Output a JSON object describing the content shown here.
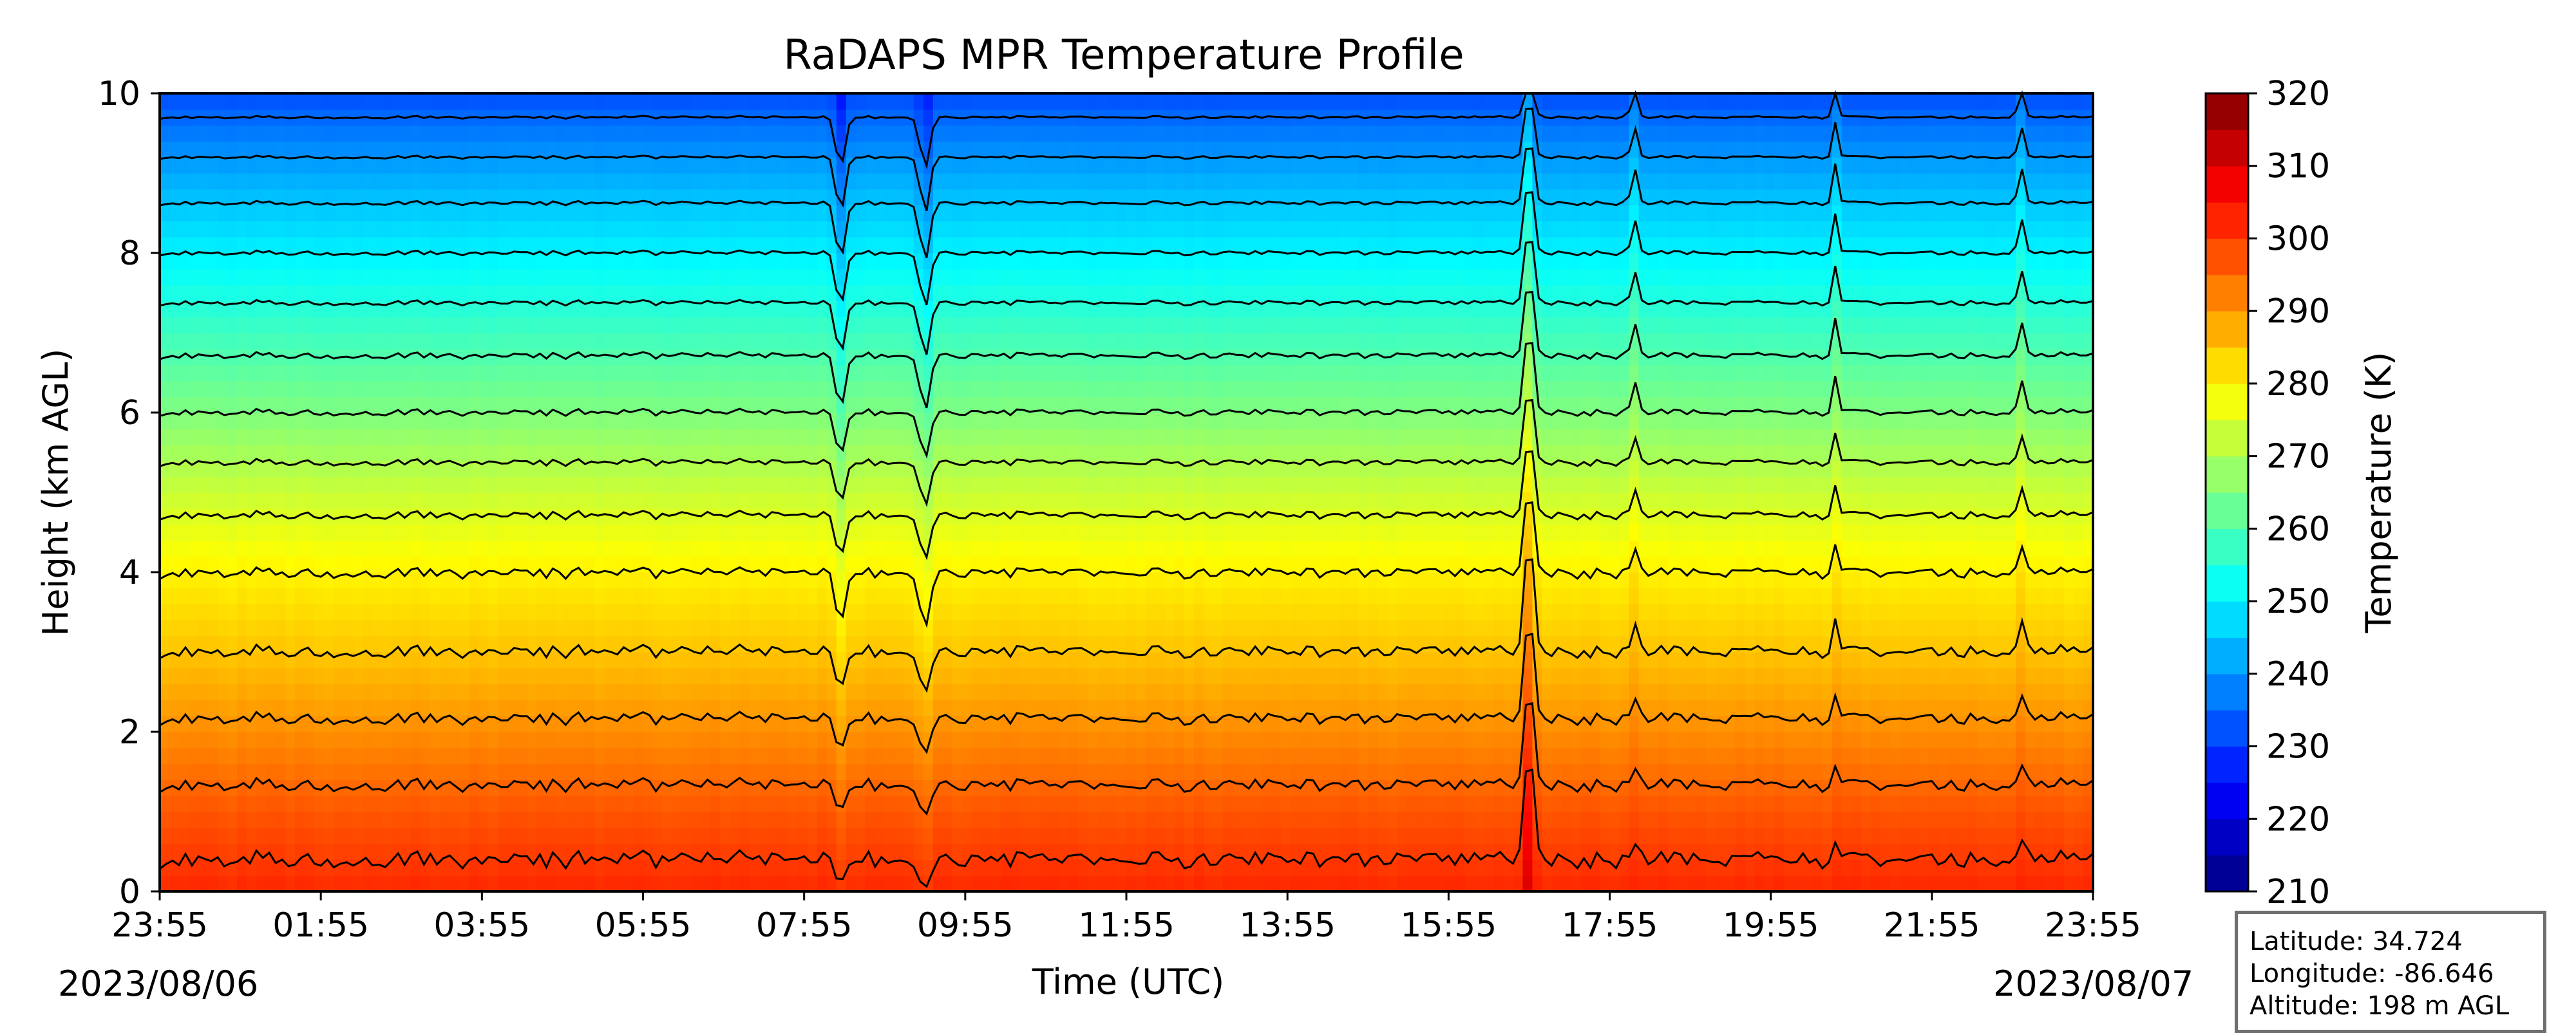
{
  "chart_data": {
    "type": "heatmap",
    "title": "RaDAPS MPR Temperature Profile",
    "xlabel": "Time (UTC)",
    "ylabel": "Height (km AGL)",
    "x_tick_labels": [
      "23:55",
      "01:55",
      "03:55",
      "05:55",
      "07:55",
      "09:55",
      "11:55",
      "13:55",
      "15:55",
      "17:55",
      "19:55",
      "21:55",
      "23:55"
    ],
    "x_date_start": "2023/08/06",
    "x_date_end": "2023/08/07",
    "x_range_hours": [
      0,
      24
    ],
    "ylim": [
      0,
      10
    ],
    "y_ticks": [
      0,
      2,
      4,
      6,
      8,
      10
    ],
    "colorbar": {
      "label": "Temperature (K)",
      "range": [
        210,
        320
      ],
      "ticks": [
        210,
        220,
        230,
        240,
        250,
        260,
        270,
        280,
        290,
        300,
        310,
        320
      ],
      "levels_step": 5,
      "colormap": "jet"
    },
    "profile": {
      "height_km": [
        0,
        1,
        2,
        3,
        4,
        5,
        6,
        7,
        8,
        9,
        10
      ],
      "temperature_k": [
        302,
        297,
        291,
        285,
        280,
        273,
        265,
        258,
        250,
        242,
        232
      ]
    },
    "events": [
      {
        "time_h": 8.45,
        "type": "cooling_dip"
      },
      {
        "time_h": 9.5,
        "type": "cooling_dip"
      },
      {
        "time_h": 17.0,
        "type": "convective_spike"
      },
      {
        "time_h": 18.3,
        "type": "minor_spike"
      },
      {
        "time_h": 20.8,
        "type": "minor_spike"
      },
      {
        "time_h": 23.1,
        "type": "minor_spike"
      }
    ],
    "grid": false,
    "legend": "none"
  },
  "station": {
    "latitude": "Latitude: 34.724",
    "longitude": "Longitude: -86.646",
    "altitude": "Altitude: 198 m AGL"
  }
}
